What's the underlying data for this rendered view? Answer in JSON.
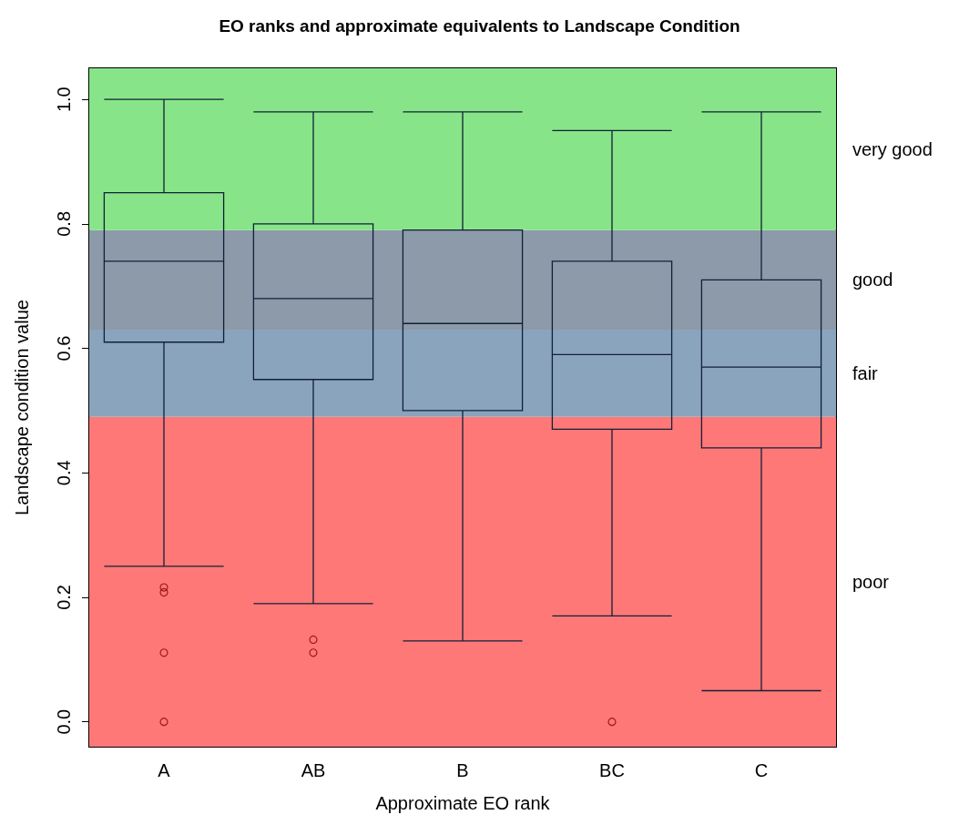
{
  "chart_data": {
    "type": "box",
    "title": "EO ranks and approximate equivalents to Landscape Condition",
    "xlabel": "Approximate EO rank",
    "ylabel": "Landscape condition value",
    "categories": [
      "A",
      "AB",
      "B",
      "BC",
      "C"
    ],
    "boxes": [
      {
        "low": 0.25,
        "q1": 0.61,
        "median": 0.74,
        "q3": 0.85,
        "high": 1.0,
        "outliers": [
          0.216,
          0.208,
          0.111,
          0.0
        ]
      },
      {
        "low": 0.19,
        "q1": 0.55,
        "median": 0.68,
        "q3": 0.8,
        "high": 0.98,
        "outliers": [
          0.132,
          0.111
        ]
      },
      {
        "low": 0.13,
        "q1": 0.5,
        "median": 0.64,
        "q3": 0.79,
        "high": 0.98
      },
      {
        "low": 0.17,
        "q1": 0.47,
        "median": 0.59,
        "q3": 0.74,
        "high": 0.95,
        "outliers": [
          0.0
        ]
      },
      {
        "low": 0.05,
        "q1": 0.44,
        "median": 0.57,
        "q3": 0.71,
        "high": 0.98
      }
    ],
    "color": "#102038",
    "ylim": [
      -0.04,
      1.05
    ],
    "yticks": [
      {
        "value": 0,
        "label": "0.0"
      },
      0.2,
      0.4,
      0.6,
      0.8,
      {
        "value": 1,
        "label": "1.0"
      }
    ],
    "grid": false,
    "bands": [
      {
        "axis": "y",
        "from": -0.04,
        "to": 0.49,
        "label": "poor",
        "color": "#ff7878"
      },
      {
        "axis": "y",
        "from": 0.49,
        "to": 0.63,
        "label": "fair",
        "color": "#8ba4bd"
      },
      {
        "axis": "y",
        "from": 0.63,
        "to": 0.79,
        "label": "good",
        "color": "#8c9aa9"
      },
      {
        "axis": "y",
        "from": 0.79,
        "to": 1.05,
        "label": "very good",
        "color": "#88e488"
      }
    ]
  }
}
